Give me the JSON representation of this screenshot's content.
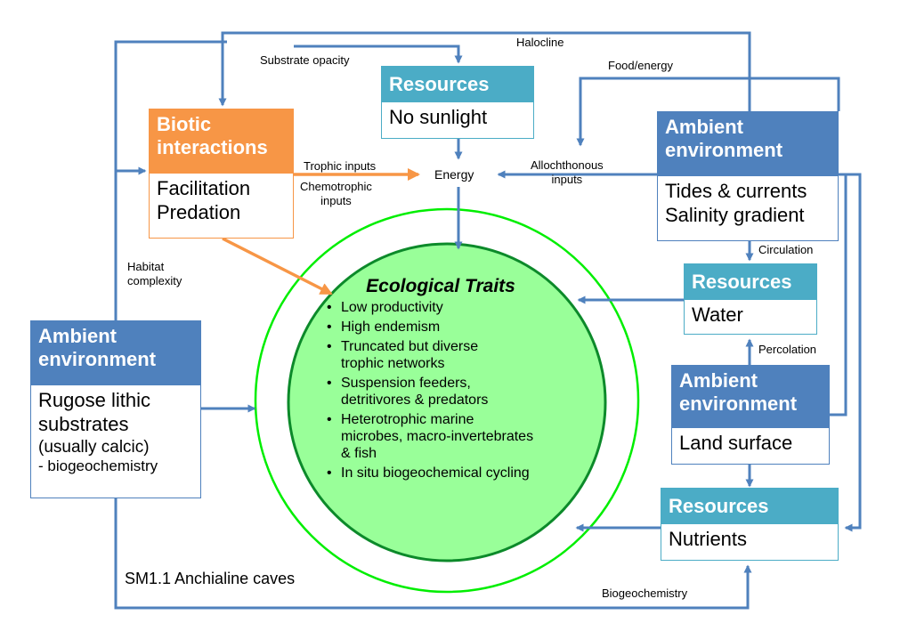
{
  "title": "SM1.1 Anchialine caves",
  "colors": {
    "arrow_blue": "#4f81bd",
    "arrow_orange": "#f79646",
    "header_blue": "#4f81bd",
    "header_teal": "#4bacc6",
    "header_orange": "#f79646",
    "circle_fill": "#99ff99",
    "circle_ring": "#00ee00"
  },
  "boxes": {
    "resources_sunlight": {
      "header": "Resources",
      "lines": [
        "No sunlight"
      ]
    },
    "biotic": {
      "header_lines": [
        "Biotic",
        "interactions"
      ],
      "lines": [
        "Facilitation",
        "Predation"
      ]
    },
    "ambient_right": {
      "header_lines": [
        "Ambient",
        "environment"
      ],
      "lines": [
        "Tides & currents",
        "Salinity gradient"
      ]
    },
    "resources_water": {
      "header": "Resources",
      "lines": [
        "Water"
      ]
    },
    "ambient_left": {
      "header_lines": [
        "Ambient",
        "environment"
      ],
      "lines": [
        "Rugose lithic",
        "substrates",
        "(usually calcic)",
        "- biogeochemistry"
      ]
    },
    "ambient_land": {
      "header_lines": [
        "Ambient",
        "environment"
      ],
      "lines": [
        "Land surface"
      ]
    },
    "resources_nutrients": {
      "header": "Resources",
      "lines": [
        "Nutrients"
      ]
    }
  },
  "energy_label": "Energy",
  "traits": {
    "title": "Ecological Traits",
    "items": [
      "Low productivity",
      "High endemism",
      "Truncated but diverse trophic networks",
      "Suspension feeders, detritivores & predators",
      "Heterotrophic marine microbes, macro-invertebrates & fish",
      "In situ biogeochemical cycling"
    ]
  },
  "labels": {
    "halocline": "Halocline",
    "substrate_opacity": "Substrate opacity",
    "food_energy": "Food/energy",
    "trophic_inputs": "Trophic inputs",
    "chemotrophic_inputs_1": "Chemotrophic",
    "chemotrophic_inputs_2": "inputs",
    "allochthonous_1": "Allochthonous",
    "allochthonous_2": "inputs",
    "circulation": "Circulation",
    "habitat_complexity_1": "Habitat",
    "habitat_complexity_2": "complexity",
    "percolation": "Percolation",
    "biogeochemistry": "Biogeochemistry"
  }
}
